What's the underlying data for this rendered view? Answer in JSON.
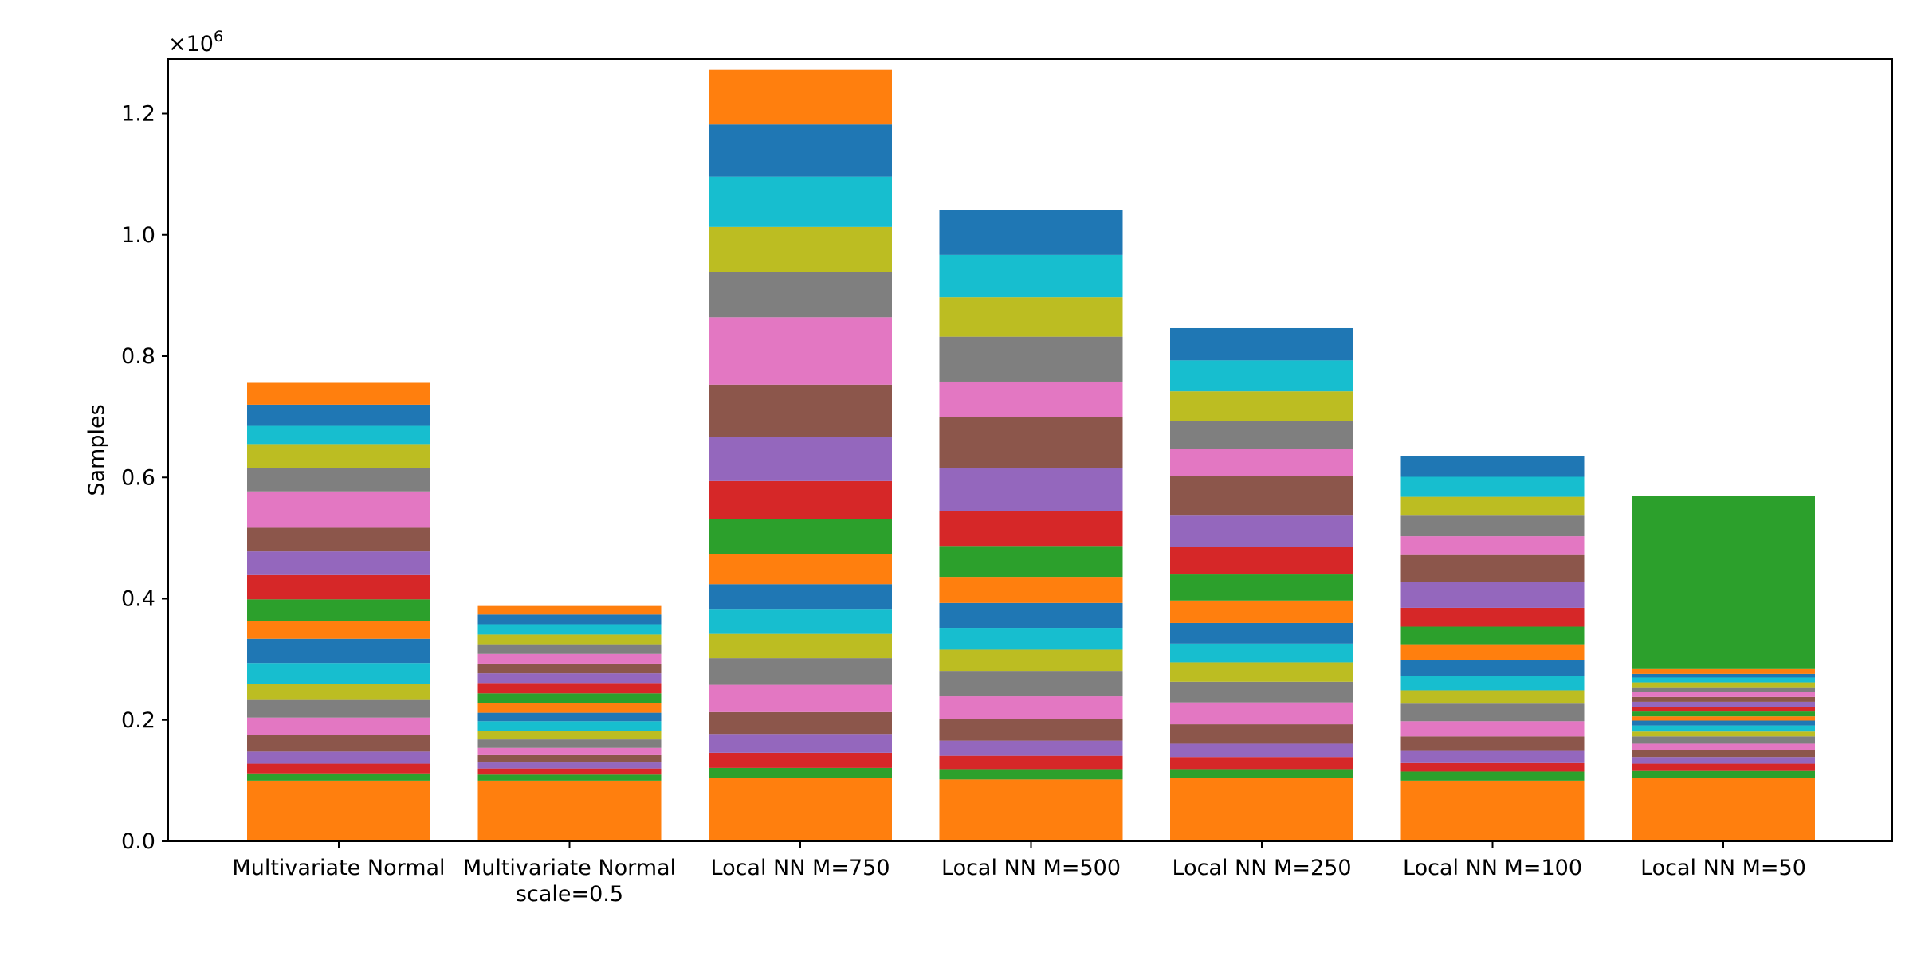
{
  "chart_data": {
    "type": "bar",
    "stacked": true,
    "title": "",
    "xlabel": "",
    "ylabel": "Samples",
    "y_multiplier_label": "×10",
    "y_multiplier_exp": "6",
    "ylim": [
      0,
      1.29
    ],
    "yticks": [
      0.0,
      0.2,
      0.4,
      0.6,
      0.8,
      1.0,
      1.2
    ],
    "ytick_labels": [
      "0.0",
      "0.2",
      "0.4",
      "0.6",
      "0.8",
      "1.0",
      "1.2"
    ],
    "grid": false,
    "legend": "none",
    "categories": [
      [
        "Multivariate Normal"
      ],
      [
        "Multivariate Normal",
        "scale=0.5"
      ],
      [
        "Local NN M=750"
      ],
      [
        "Local NN M=500"
      ],
      [
        "Local NN M=250"
      ],
      [
        "Local NN M=100"
      ],
      [
        "Local NN M=50"
      ]
    ],
    "segment_colors": [
      "#ff7f0e",
      "#2ca02c",
      "#d62728",
      "#9467bd",
      "#8c564b",
      "#e377c2",
      "#7f7f7f",
      "#bcbd22",
      "#17becf",
      "#1f77b4"
    ],
    "stacks": [
      [
        0.1,
        0.012,
        0.016,
        0.02,
        0.027,
        0.029,
        0.029,
        0.026,
        0.035,
        0.04,
        0.029,
        0.036,
        0.04,
        0.039,
        0.039,
        0.06,
        0.039,
        0.039,
        0.03,
        0.035,
        0.036
      ],
      [
        0.1,
        0.01,
        0.01,
        0.01,
        0.012,
        0.012,
        0.014,
        0.014,
        0.016,
        0.014,
        0.016,
        0.016,
        0.017,
        0.016,
        0.016,
        0.016,
        0.016,
        0.016,
        0.017,
        0.016,
        0.014
      ],
      [
        0.105,
        0.016,
        0.025,
        0.031,
        0.036,
        0.045,
        0.044,
        0.04,
        0.04,
        0.042,
        0.05,
        0.057,
        0.063,
        0.072,
        0.087,
        0.111,
        0.074,
        0.075,
        0.083,
        0.086,
        0.09
      ],
      [
        0.102,
        0.017,
        0.022,
        0.025,
        0.035,
        0.038,
        0.042,
        0.035,
        0.036,
        0.041,
        0.043,
        0.051,
        0.057,
        0.071,
        0.084,
        0.059,
        0.074,
        0.065,
        0.07,
        0.074
      ],
      [
        0.104,
        0.015,
        0.02,
        0.022,
        0.032,
        0.036,
        0.034,
        0.032,
        0.031,
        0.034,
        0.037,
        0.043,
        0.046,
        0.051,
        0.065,
        0.045,
        0.046,
        0.049,
        0.051,
        0.053
      ],
      [
        0.1,
        0.015,
        0.014,
        0.02,
        0.024,
        0.025,
        0.029,
        0.022,
        0.024,
        0.026,
        0.026,
        0.029,
        0.031,
        0.042,
        0.045,
        0.031,
        0.034,
        0.031,
        0.033,
        0.034
      ],
      [
        0.104,
        0.012,
        0.012,
        0.011,
        0.012,
        0.01,
        0.012,
        0.008,
        0.01,
        0.008,
        0.007,
        0.008,
        0.008,
        0.008,
        0.008,
        0.008,
        0.008,
        0.008,
        0.008,
        0.006,
        0.008,
        0.285
      ]
    ]
  }
}
